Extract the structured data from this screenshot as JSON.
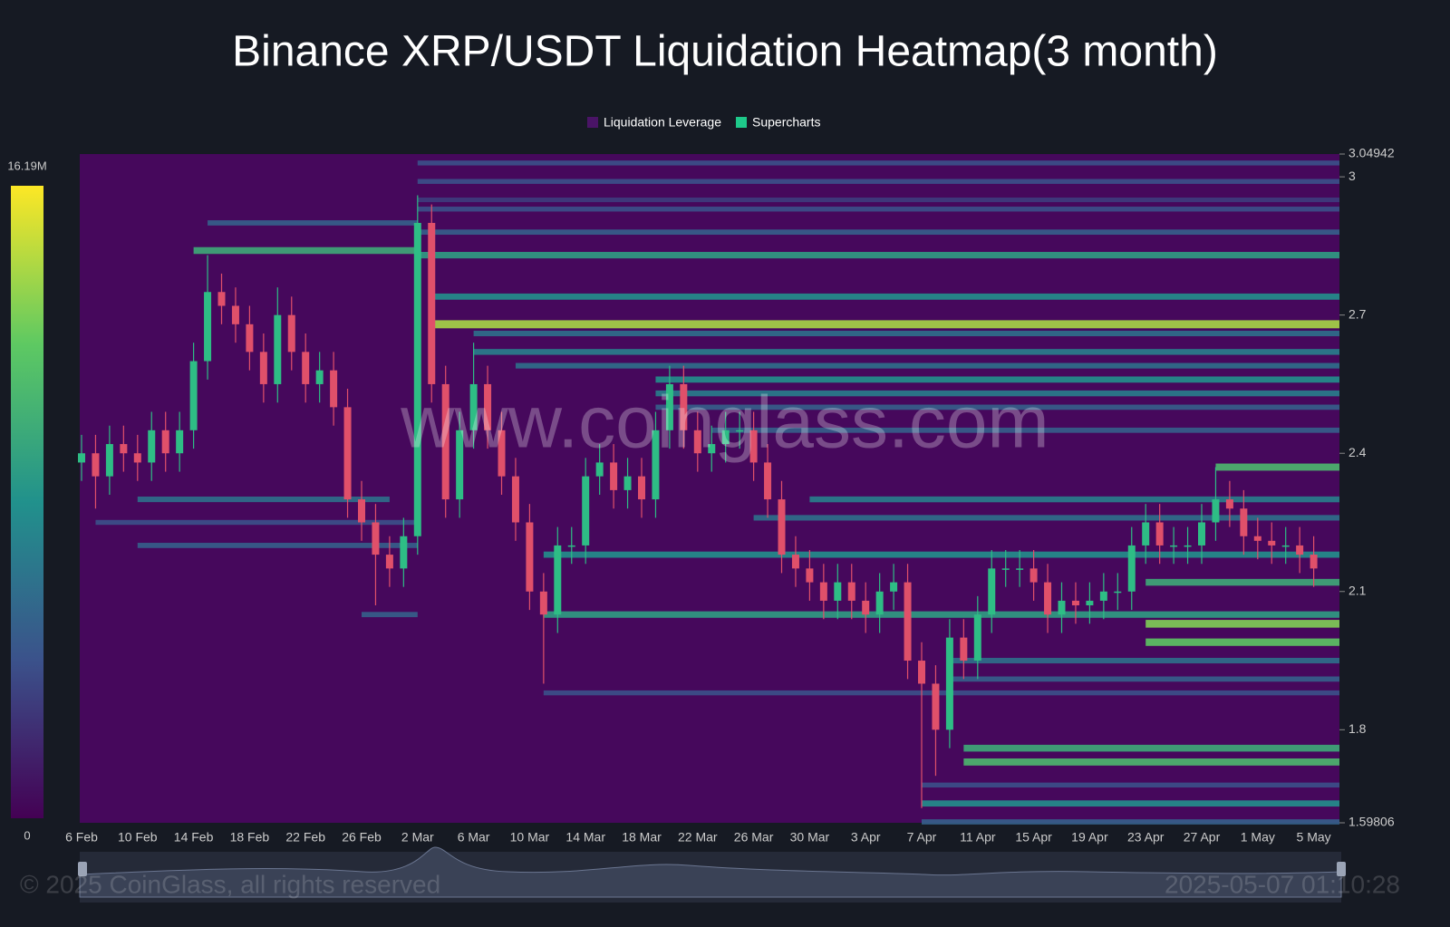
{
  "chart_data": {
    "type": "liquidation-heatmap",
    "title": "Binance XRP/USDT Liquidation Heatmap(3 month)",
    "watermark": "www.coinglass.com",
    "footer_left": "© 2025 CoinGlass, all rights reserved",
    "footer_right": "2025-05-07 01:10:28",
    "legend": [
      {
        "name": "Liquidation Leverage",
        "color": "#4a1466"
      },
      {
        "name": "Supercharts",
        "color": "#1ec98a"
      }
    ],
    "up_color": "#2ebd85",
    "down_color": "#e0506a",
    "background_color": "#46085c",
    "colorscale": [
      "#440154",
      "#3b528b",
      "#21918c",
      "#5ec962",
      "#fde725"
    ],
    "zlim": [
      0,
      {
        "value": 16.19,
        "label": "16.19M"
      }
    ],
    "ylim": [
      1.59806,
      3.04942
    ],
    "yticks": [
      1.59806,
      1.8,
      2.1,
      2.4,
      2.7,
      3,
      3.04942
    ],
    "categories": [
      "6 Feb",
      null,
      null,
      null,
      "10 Feb",
      null,
      null,
      null,
      "14 Feb",
      null,
      null,
      null,
      "18 Feb",
      null,
      null,
      null,
      "22 Feb",
      null,
      null,
      null,
      "26 Feb",
      null,
      null,
      null,
      "2 Mar",
      null,
      null,
      null,
      "6 Mar",
      null,
      null,
      null,
      "10 Mar",
      null,
      null,
      null,
      "14 Mar",
      null,
      null,
      null,
      "18 Mar",
      null,
      null,
      null,
      "22 Mar",
      null,
      null,
      null,
      "26 Mar",
      null,
      null,
      null,
      "30 Mar",
      null,
      null,
      null,
      "3 Apr",
      null,
      null,
      null,
      "7 Apr",
      null,
      null,
      null,
      "11 Apr",
      null,
      null,
      null,
      "15 Apr",
      null,
      null,
      null,
      "19 Apr",
      null,
      null,
      null,
      "23 Apr",
      null,
      null,
      null,
      "27 Apr",
      null,
      null,
      null,
      "1 May",
      null,
      null,
      null,
      "5 May"
    ],
    "open": [
      2.38,
      2.4,
      2.35,
      2.42,
      2.4,
      2.38,
      2.45,
      2.4,
      2.45,
      2.6,
      2.75,
      2.72,
      2.68,
      2.62,
      2.55,
      2.7,
      2.62,
      2.55,
      2.58,
      2.5,
      2.3,
      2.25,
      2.18,
      2.15,
      2.22,
      2.9,
      2.55,
      2.3,
      2.45,
      2.55,
      2.45,
      2.35,
      2.25,
      2.1,
      2.05,
      2.2,
      2.2,
      2.35,
      2.38,
      2.32,
      2.35,
      2.3,
      2.45,
      2.55,
      2.45,
      2.4,
      2.42,
      2.45,
      2.45,
      2.38,
      2.3,
      2.18,
      2.15,
      2.12,
      2.08,
      2.12,
      2.08,
      2.05,
      2.1,
      2.12,
      1.95,
      1.9,
      1.8,
      2.0,
      1.95,
      2.05,
      2.15,
      2.15,
      2.15,
      2.12,
      2.05,
      2.08,
      2.07,
      2.08,
      2.1,
      2.1,
      2.2,
      2.25,
      2.2,
      2.2,
      2.2,
      2.25,
      2.3,
      2.28,
      2.22,
      2.21,
      2.2,
      2.2,
      2.18
    ],
    "high": [
      2.44,
      2.44,
      2.46,
      2.46,
      2.44,
      2.49,
      2.49,
      2.49,
      2.64,
      2.83,
      2.79,
      2.76,
      2.72,
      2.66,
      2.76,
      2.74,
      2.66,
      2.62,
      2.62,
      2.54,
      2.34,
      2.29,
      2.22,
      2.26,
      2.96,
      2.94,
      2.59,
      2.49,
      2.64,
      2.59,
      2.49,
      2.39,
      2.29,
      2.14,
      2.24,
      2.24,
      2.39,
      2.42,
      2.42,
      2.39,
      2.39,
      2.49,
      2.59,
      2.59,
      2.49,
      2.46,
      2.49,
      2.49,
      2.49,
      2.42,
      2.34,
      2.22,
      2.19,
      2.16,
      2.16,
      2.16,
      2.12,
      2.14,
      2.16,
      2.16,
      1.99,
      1.94,
      2.04,
      2.04,
      2.09,
      2.19,
      2.19,
      2.19,
      2.19,
      2.16,
      2.12,
      2.12,
      2.12,
      2.14,
      2.14,
      2.24,
      2.29,
      2.29,
      2.24,
      2.24,
      2.29,
      2.37,
      2.34,
      2.32,
      2.26,
      2.25,
      2.24,
      2.24,
      2.22
    ],
    "low": [
      2.34,
      2.28,
      2.31,
      2.36,
      2.34,
      2.34,
      2.36,
      2.36,
      2.41,
      2.56,
      2.68,
      2.64,
      2.58,
      2.51,
      2.51,
      2.58,
      2.51,
      2.51,
      2.46,
      2.26,
      2.21,
      2.07,
      2.11,
      2.11,
      2.18,
      2.51,
      2.26,
      2.26,
      2.41,
      2.41,
      2.31,
      2.21,
      2.06,
      1.9,
      2.01,
      2.16,
      2.16,
      2.31,
      2.28,
      2.28,
      2.26,
      2.26,
      2.41,
      2.41,
      2.36,
      2.36,
      2.38,
      2.41,
      2.34,
      2.26,
      2.14,
      2.11,
      2.08,
      2.04,
      2.04,
      2.04,
      2.01,
      2.01,
      2.06,
      1.91,
      1.63,
      1.7,
      1.76,
      1.91,
      1.91,
      2.01,
      2.11,
      2.11,
      2.08,
      2.01,
      2.01,
      2.03,
      2.03,
      2.04,
      2.06,
      2.06,
      2.16,
      2.16,
      2.16,
      2.16,
      2.16,
      2.21,
      2.24,
      2.18,
      2.17,
      2.16,
      2.16,
      2.14,
      2.11
    ],
    "close": [
      2.4,
      2.35,
      2.42,
      2.4,
      2.38,
      2.45,
      2.4,
      2.45,
      2.6,
      2.75,
      2.72,
      2.68,
      2.62,
      2.55,
      2.7,
      2.62,
      2.55,
      2.58,
      2.5,
      2.3,
      2.25,
      2.18,
      2.15,
      2.22,
      2.9,
      2.55,
      2.3,
      2.45,
      2.55,
      2.45,
      2.35,
      2.25,
      2.1,
      2.05,
      2.2,
      2.2,
      2.35,
      2.38,
      2.32,
      2.35,
      2.3,
      2.45,
      2.55,
      2.45,
      2.4,
      2.42,
      2.45,
      2.45,
      2.38,
      2.3,
      2.18,
      2.15,
      2.12,
      2.08,
      2.12,
      2.08,
      2.05,
      2.1,
      2.12,
      1.95,
      1.9,
      1.8,
      2.0,
      1.95,
      2.05,
      2.15,
      2.15,
      2.15,
      2.12,
      2.05,
      2.08,
      2.07,
      2.08,
      2.1,
      2.1,
      2.2,
      2.25,
      2.2,
      2.2,
      2.2,
      2.25,
      2.3,
      2.28,
      2.22,
      2.21,
      2.2,
      2.2,
      2.18,
      2.15
    ],
    "levels": [
      {
        "price": 3.03,
        "start": 24,
        "end": 90,
        "intensity": 4
      },
      {
        "price": 2.99,
        "start": 24,
        "end": 90,
        "intensity": 4
      },
      {
        "price": 2.95,
        "start": 24,
        "end": 90,
        "intensity": 3
      },
      {
        "price": 2.93,
        "start": 24,
        "end": 90,
        "intensity": 4
      },
      {
        "price": 2.9,
        "start": 9,
        "end": 24,
        "intensity": 5
      },
      {
        "price": 2.88,
        "start": 24,
        "end": 90,
        "intensity": 5
      },
      {
        "price": 2.84,
        "start": 8,
        "end": 24,
        "intensity": 10
      },
      {
        "price": 2.83,
        "start": 24,
        "end": 90,
        "intensity": 9
      },
      {
        "price": 2.74,
        "start": 25,
        "end": 90,
        "intensity": 8
      },
      {
        "price": 2.68,
        "start": 25,
        "end": 90,
        "intensity": 14
      },
      {
        "price": 2.66,
        "start": 28,
        "end": 90,
        "intensity": 6
      },
      {
        "price": 2.62,
        "start": 28,
        "end": 90,
        "intensity": 7
      },
      {
        "price": 2.59,
        "start": 31,
        "end": 90,
        "intensity": 6
      },
      {
        "price": 2.56,
        "start": 41,
        "end": 90,
        "intensity": 8
      },
      {
        "price": 2.53,
        "start": 41,
        "end": 90,
        "intensity": 7
      },
      {
        "price": 2.5,
        "start": 41,
        "end": 90,
        "intensity": 5
      },
      {
        "price": 2.45,
        "start": 45,
        "end": 90,
        "intensity": 5
      },
      {
        "price": 2.37,
        "start": 81,
        "end": 90,
        "intensity": 11
      },
      {
        "price": 2.3,
        "start": 4,
        "end": 22,
        "intensity": 6
      },
      {
        "price": 2.3,
        "start": 52,
        "end": 90,
        "intensity": 7
      },
      {
        "price": 2.26,
        "start": 48,
        "end": 90,
        "intensity": 6
      },
      {
        "price": 2.25,
        "start": 1,
        "end": 24,
        "intensity": 4
      },
      {
        "price": 2.2,
        "start": 4,
        "end": 24,
        "intensity": 5
      },
      {
        "price": 2.18,
        "start": 33,
        "end": 90,
        "intensity": 8
      },
      {
        "price": 2.12,
        "start": 76,
        "end": 90,
        "intensity": 10
      },
      {
        "price": 2.05,
        "start": 20,
        "end": 24,
        "intensity": 5
      },
      {
        "price": 2.05,
        "start": 33,
        "end": 90,
        "intensity": 9
      },
      {
        "price": 2.03,
        "start": 76,
        "end": 90,
        "intensity": 13
      },
      {
        "price": 1.99,
        "start": 76,
        "end": 90,
        "intensity": 12
      },
      {
        "price": 1.95,
        "start": 62,
        "end": 90,
        "intensity": 6
      },
      {
        "price": 1.91,
        "start": 62,
        "end": 90,
        "intensity": 5
      },
      {
        "price": 1.88,
        "start": 33,
        "end": 90,
        "intensity": 4
      },
      {
        "price": 1.76,
        "start": 63,
        "end": 90,
        "intensity": 10
      },
      {
        "price": 1.73,
        "start": 63,
        "end": 90,
        "intensity": 11
      },
      {
        "price": 1.68,
        "start": 60,
        "end": 90,
        "intensity": 4
      },
      {
        "price": 1.64,
        "start": 60,
        "end": 90,
        "intensity": 8
      },
      {
        "price": 1.6,
        "start": 60,
        "end": 90,
        "intensity": 5
      }
    ]
  }
}
